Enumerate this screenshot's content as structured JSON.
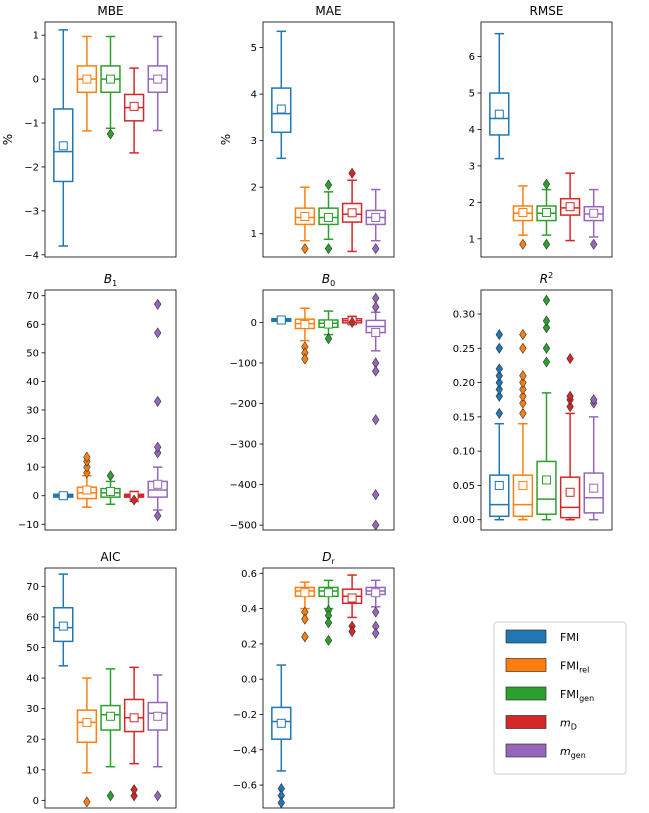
{
  "colors": {
    "FMI": "#1f77b4",
    "FMI_rel": "#ff7f0e",
    "FMI_gen": "#2ca02c",
    "m_D": "#d62728",
    "m_gen": "#9467bd"
  },
  "chart_data": [
    {
      "type": "box",
      "title": "MBE",
      "ylabel": "%",
      "ylim": [
        -4.05,
        1.3
      ],
      "yticks": [
        1,
        0,
        -1,
        -2,
        -3,
        -4
      ],
      "yticklabels": [
        "1",
        "0",
        "−1",
        "−2",
        "−3",
        "−4"
      ],
      "boxes": [
        {
          "series": "FMI",
          "whislo": -3.8,
          "q1": -2.33,
          "med": -1.65,
          "q3": -0.68,
          "whishi": 1.12,
          "mean": -1.52,
          "fliers": []
        },
        {
          "series": "FMI_rel",
          "whislo": -1.18,
          "q1": -0.3,
          "med": 0.0,
          "q3": 0.3,
          "whishi": 0.97,
          "mean": 0.0,
          "fliers": []
        },
        {
          "series": "FMI_gen",
          "whislo": -1.12,
          "q1": -0.3,
          "med": 0.0,
          "q3": 0.3,
          "whishi": 0.97,
          "mean": 0.0,
          "fliers": [
            -1.25
          ]
        },
        {
          "series": "m_D",
          "whislo": -1.68,
          "q1": -0.95,
          "med": -0.65,
          "q3": -0.35,
          "whishi": 0.25,
          "mean": -0.62,
          "fliers": []
        },
        {
          "series": "m_gen",
          "whislo": -1.17,
          "q1": -0.3,
          "med": 0.0,
          "q3": 0.3,
          "whishi": 0.97,
          "mean": 0.0,
          "fliers": []
        }
      ]
    },
    {
      "type": "box",
      "title": "MAE",
      "ylabel": "%",
      "ylim": [
        0.5,
        5.55
      ],
      "yticks": [
        1,
        2,
        3,
        4,
        5
      ],
      "yticklabels": [
        "1",
        "2",
        "3",
        "4",
        "5"
      ],
      "boxes": [
        {
          "series": "FMI",
          "whislo": 2.62,
          "q1": 3.18,
          "med": 3.58,
          "q3": 4.13,
          "whishi": 5.35,
          "mean": 3.68,
          "fliers": []
        },
        {
          "series": "FMI_rel",
          "whislo": 0.85,
          "q1": 1.2,
          "med": 1.35,
          "q3": 1.55,
          "whishi": 2.0,
          "mean": 1.37,
          "fliers": [
            0.68
          ]
        },
        {
          "series": "FMI_gen",
          "whislo": 0.88,
          "q1": 1.2,
          "med": 1.35,
          "q3": 1.55,
          "whishi": 1.9,
          "mean": 1.35,
          "fliers": [
            0.68,
            2.05
          ]
        },
        {
          "series": "m_D",
          "whislo": 0.62,
          "q1": 1.25,
          "med": 1.42,
          "q3": 1.65,
          "whishi": 2.15,
          "mean": 1.45,
          "fliers": [
            2.3
          ]
        },
        {
          "series": "m_gen",
          "whislo": 0.85,
          "q1": 1.2,
          "med": 1.35,
          "q3": 1.5,
          "whishi": 1.95,
          "mean": 1.35,
          "fliers": [
            0.68
          ]
        }
      ]
    },
    {
      "type": "box",
      "title": "RMSE",
      "ylabel": "",
      "ylim": [
        0.5,
        6.95
      ],
      "yticks": [
        1,
        2,
        3,
        4,
        5,
        6
      ],
      "yticklabels": [
        "1",
        "2",
        "3",
        "4",
        "5",
        "6"
      ],
      "boxes": [
        {
          "series": "FMI",
          "whislo": 3.2,
          "q1": 3.85,
          "med": 4.3,
          "q3": 5.0,
          "whishi": 6.63,
          "mean": 4.42,
          "fliers": []
        },
        {
          "series": "FMI_rel",
          "whislo": 1.1,
          "q1": 1.5,
          "med": 1.7,
          "q3": 1.9,
          "whishi": 2.45,
          "mean": 1.72,
          "fliers": [
            0.85
          ]
        },
        {
          "series": "FMI_gen",
          "whislo": 1.1,
          "q1": 1.5,
          "med": 1.7,
          "q3": 1.9,
          "whishi": 2.35,
          "mean": 1.72,
          "fliers": [
            0.85,
            2.5
          ]
        },
        {
          "series": "m_D",
          "whislo": 0.95,
          "q1": 1.65,
          "med": 1.85,
          "q3": 2.1,
          "whishi": 2.8,
          "mean": 1.88,
          "fliers": []
        },
        {
          "series": "m_gen",
          "whislo": 1.05,
          "q1": 1.5,
          "med": 1.68,
          "q3": 1.88,
          "whishi": 2.35,
          "mean": 1.7,
          "fliers": [
            0.85
          ]
        }
      ]
    },
    {
      "type": "box",
      "title": "B1",
      "title_main": "B",
      "title_sub": "1",
      "ylabel": "",
      "ylim": [
        -12,
        72
      ],
      "yticks": [
        70,
        60,
        50,
        40,
        30,
        20,
        10,
        0,
        -10
      ],
      "yticklabels": [
        "70",
        "60",
        "50",
        "40",
        "30",
        "20",
        "10",
        "0",
        "−10"
      ],
      "boxes": [
        {
          "series": "FMI",
          "whislo": -1,
          "q1": -0.5,
          "med": 0,
          "q3": 0.5,
          "whishi": 1,
          "mean": 0,
          "fliers": []
        },
        {
          "series": "FMI_rel",
          "whislo": -4,
          "q1": -1,
          "med": 1,
          "q3": 3,
          "whishi": 7,
          "mean": 2,
          "fliers": [
            8,
            10,
            12,
            13.5
          ]
        },
        {
          "series": "FMI_gen",
          "whislo": -3,
          "q1": -0.5,
          "med": 1,
          "q3": 2.5,
          "whishi": 5,
          "mean": 1.5,
          "fliers": [
            7
          ]
        },
        {
          "series": "m_D",
          "whislo": -2,
          "q1": -0.5,
          "med": 0,
          "q3": 0.5,
          "whishi": 1.5,
          "mean": 0,
          "fliers": [
            -1.5
          ]
        },
        {
          "series": "m_gen",
          "whislo": -5,
          "q1": -0.5,
          "med": 2,
          "q3": 5,
          "whishi": 10,
          "mean": 4,
          "fliers": [
            15,
            17,
            33,
            57,
            67,
            -7
          ]
        }
      ]
    },
    {
      "type": "box",
      "title": "B0",
      "title_main": "B",
      "title_sub": "0",
      "ylabel": "",
      "ylim": [
        -512,
        80
      ],
      "yticks": [
        0,
        -100,
        -200,
        -300,
        -400,
        -500
      ],
      "yticklabels": [
        "0",
        "−100",
        "−200",
        "−300",
        "−400",
        "−500"
      ],
      "boxes": [
        {
          "series": "FMI",
          "whislo": 0,
          "q1": 3,
          "med": 6,
          "q3": 9,
          "whishi": 12,
          "mean": 6,
          "fliers": []
        },
        {
          "series": "FMI_rel",
          "whislo": -45,
          "q1": -15,
          "med": -3,
          "q3": 8,
          "whishi": 35,
          "mean": -5,
          "fliers": [
            -60,
            -75,
            -90
          ]
        },
        {
          "series": "FMI_gen",
          "whislo": -30,
          "q1": -12,
          "med": -2,
          "q3": 6,
          "whishi": 28,
          "mean": -4,
          "fliers": [
            -40
          ]
        },
        {
          "series": "m_D",
          "whislo": -5,
          "q1": -1,
          "med": 4,
          "q3": 9,
          "whishi": 15,
          "mean": 4,
          "fliers": [
            0
          ]
        },
        {
          "series": "m_gen",
          "whislo": -70,
          "q1": -25,
          "med": -10,
          "q3": 5,
          "whishi": 25,
          "mean": -25,
          "fliers": [
            60,
            38,
            -100,
            -120,
            -240,
            -425,
            -500
          ]
        }
      ]
    },
    {
      "type": "box",
      "title": "R2",
      "title_main": "R",
      "title_sup": "2",
      "ylabel": "",
      "ylim": [
        -0.015,
        0.335
      ],
      "yticks": [
        0.3,
        0.25,
        0.2,
        0.15,
        0.1,
        0.05,
        0.0
      ],
      "yticklabels": [
        "0.30",
        "0.25",
        "0.20",
        "0.15",
        "0.10",
        "0.05",
        "0.00"
      ],
      "boxes": [
        {
          "series": "FMI",
          "whislo": 0.0,
          "q1": 0.005,
          "med": 0.022,
          "q3": 0.065,
          "whishi": 0.14,
          "mean": 0.05,
          "fliers": [
            0.155,
            0.18,
            0.19,
            0.2,
            0.21,
            0.22,
            0.25,
            0.27
          ]
        },
        {
          "series": "FMI_rel",
          "whislo": 0.0,
          "q1": 0.005,
          "med": 0.022,
          "q3": 0.065,
          "whishi": 0.14,
          "mean": 0.05,
          "fliers": [
            0.155,
            0.17,
            0.18,
            0.19,
            0.2,
            0.21,
            0.25,
            0.27
          ]
        },
        {
          "series": "FMI_gen",
          "whislo": 0.0,
          "q1": 0.008,
          "med": 0.03,
          "q3": 0.085,
          "whishi": 0.185,
          "mean": 0.058,
          "fliers": [
            0.23,
            0.25,
            0.28,
            0.29,
            0.32
          ]
        },
        {
          "series": "m_D",
          "whislo": 0.0,
          "q1": 0.003,
          "med": 0.018,
          "q3": 0.062,
          "whishi": 0.155,
          "mean": 0.04,
          "fliers": [
            0.165,
            0.175,
            0.18,
            0.235
          ]
        },
        {
          "series": "m_gen",
          "whislo": 0.0,
          "q1": 0.01,
          "med": 0.032,
          "q3": 0.068,
          "whishi": 0.15,
          "mean": 0.046,
          "fliers": [
            0.17,
            0.175
          ]
        }
      ]
    },
    {
      "type": "box",
      "title": "AIC",
      "ylabel": "",
      "ylim": [
        -2.5,
        76
      ],
      "yticks": [
        70,
        60,
        50,
        40,
        30,
        20,
        10,
        0
      ],
      "yticklabels": [
        "70",
        "60",
        "50",
        "40",
        "30",
        "20",
        "10",
        "0"
      ],
      "boxes": [
        {
          "series": "FMI",
          "whislo": 44,
          "q1": 52,
          "med": 56.5,
          "q3": 63,
          "whishi": 74,
          "mean": 57,
          "fliers": []
        },
        {
          "series": "FMI_rel",
          "whislo": 9,
          "q1": 19,
          "med": 25.5,
          "q3": 29.5,
          "whishi": 40,
          "mean": 25.5,
          "fliers": [
            -0.5
          ]
        },
        {
          "series": "FMI_gen",
          "whislo": 11,
          "q1": 23,
          "med": 28,
          "q3": 31,
          "whishi": 43,
          "mean": 27.5,
          "fliers": [
            1.5
          ]
        },
        {
          "series": "m_D",
          "whislo": 12,
          "q1": 22.5,
          "med": 27,
          "q3": 33,
          "whishi": 43.5,
          "mean": 27,
          "fliers": [
            1.5,
            3.5
          ]
        },
        {
          "series": "m_gen",
          "whislo": 11,
          "q1": 23,
          "med": 28.5,
          "q3": 32,
          "whishi": 41,
          "mean": 27.5,
          "fliers": [
            1.5
          ]
        }
      ]
    },
    {
      "type": "box",
      "title": "Dr",
      "title_main": "D",
      "title_sub": "r",
      "ylabel": "",
      "ylim": [
        -0.73,
        0.63
      ],
      "yticks": [
        0.6,
        0.4,
        0.2,
        0.0,
        -0.2,
        -0.4,
        -0.6
      ],
      "yticklabels": [
        "0.6",
        "0.4",
        "0.2",
        "0.0",
        "−0.2",
        "−0.4",
        "−0.6"
      ],
      "boxes": [
        {
          "series": "FMI",
          "whislo": -0.52,
          "q1": -0.34,
          "med": -0.24,
          "q3": -0.16,
          "whishi": 0.08,
          "mean": -0.25,
          "fliers": [
            -0.62,
            -0.66,
            -0.7
          ]
        },
        {
          "series": "FMI_rel",
          "whislo": 0.4,
          "q1": 0.47,
          "med": 0.5,
          "q3": 0.52,
          "whishi": 0.55,
          "mean": 0.49,
          "fliers": [
            0.38,
            0.34,
            0.24
          ]
        },
        {
          "series": "FMI_gen",
          "whislo": 0.4,
          "q1": 0.47,
          "med": 0.5,
          "q3": 0.52,
          "whishi": 0.56,
          "mean": 0.49,
          "fliers": [
            0.39,
            0.36,
            0.32,
            0.22
          ]
        },
        {
          "series": "m_D",
          "whislo": 0.35,
          "q1": 0.43,
          "med": 0.47,
          "q3": 0.51,
          "whishi": 0.59,
          "mean": 0.46,
          "fliers": [
            0.3,
            0.27
          ]
        },
        {
          "series": "m_gen",
          "whislo": 0.41,
          "q1": 0.48,
          "med": 0.5,
          "q3": 0.52,
          "whishi": 0.56,
          "mean": 0.49,
          "fliers": [
            0.38,
            0.3,
            0.26
          ]
        }
      ]
    }
  ],
  "legend": {
    "location": "lower-right",
    "entries": [
      {
        "series": "FMI",
        "main": "FMI",
        "sub": ""
      },
      {
        "series": "FMI_rel",
        "main": "FMI",
        "sub": "rel"
      },
      {
        "series": "FMI_gen",
        "main": "FMI",
        "sub": "gen"
      },
      {
        "series": "m_D",
        "main": "m",
        "sub": "D"
      },
      {
        "series": "m_gen",
        "main": "m",
        "sub": "gen"
      }
    ]
  }
}
